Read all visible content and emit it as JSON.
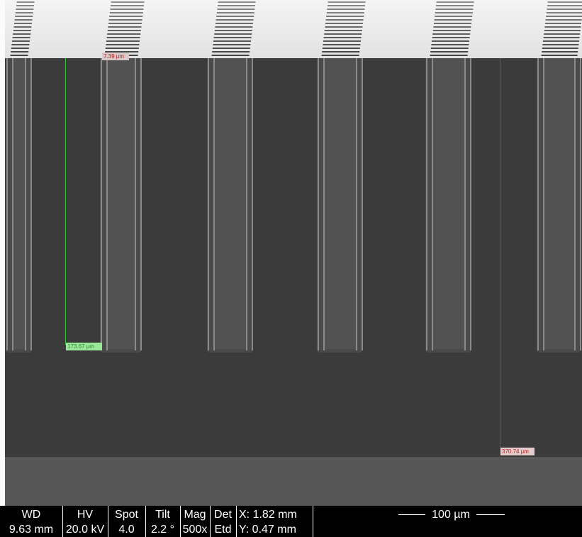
{
  "measurements": [
    {
      "label": "7.39 µm"
    },
    {
      "label": "173.67 µm"
    },
    {
      "label": "370.74 µm"
    }
  ],
  "info_bar": {
    "columns": [
      {
        "header": "WD",
        "value": "9.63 mm"
      },
      {
        "header": "HV",
        "value": "20.0 kV"
      },
      {
        "header": "Spot",
        "value": "4.0"
      },
      {
        "header": "Tilt",
        "value": "2.2 °"
      },
      {
        "header": "Mag",
        "value": "500x"
      },
      {
        "header": "Det",
        "value": "Etd"
      }
    ],
    "position": [
      "X: 1.82 mm",
      "Y: 0.47 mm"
    ],
    "scale_bar": "100 µm"
  }
}
